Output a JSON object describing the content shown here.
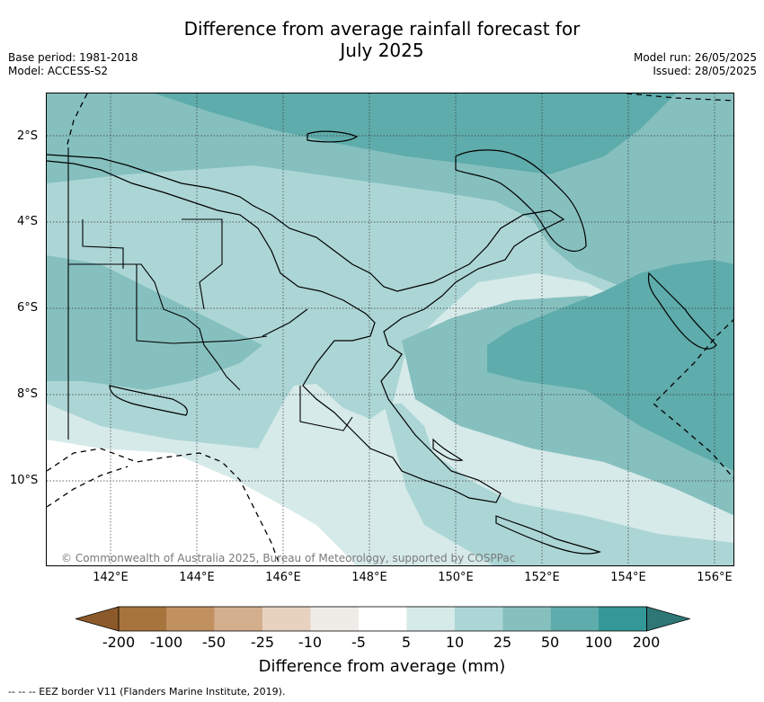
{
  "title_line1": "Difference from average rainfall forecast for",
  "title_line2": "July 2025",
  "meta": {
    "base_period": "Base period: 1981-2018",
    "model": "Model: ACCESS-S2",
    "model_run": "Model run: 26/05/2025",
    "issued": "Issued: 28/05/2025"
  },
  "copyright": "© Commonwealth of Australia 2025, Bureau of Meteorology, supported by COSPPac",
  "lat_labels": [
    "2°S",
    "4°S",
    "6°S",
    "8°S",
    "10°S"
  ],
  "lon_labels": [
    "142°E",
    "144°E",
    "146°E",
    "148°E",
    "150°E",
    "152°E",
    "154°E",
    "156°E"
  ],
  "colorbar": {
    "label": "Difference from average (mm)",
    "ticks": [
      "-200",
      "-100",
      "-50",
      "-25",
      "-10",
      "-5",
      "5",
      "10",
      "25",
      "50",
      "100",
      "200"
    ],
    "colors": [
      "#8c5a2a",
      "#a8743d",
      "#c0915f",
      "#d4af8e",
      "#e6d2bf",
      "#efebe7",
      "#ffffff",
      "#d6eae9",
      "#acd6d5",
      "#85c0bf",
      "#5eacab",
      "#339897",
      "#2e7776"
    ]
  },
  "eez_note": "--  --  -- EEZ border V11 (Flanders Marine Institute, 2019)."
}
